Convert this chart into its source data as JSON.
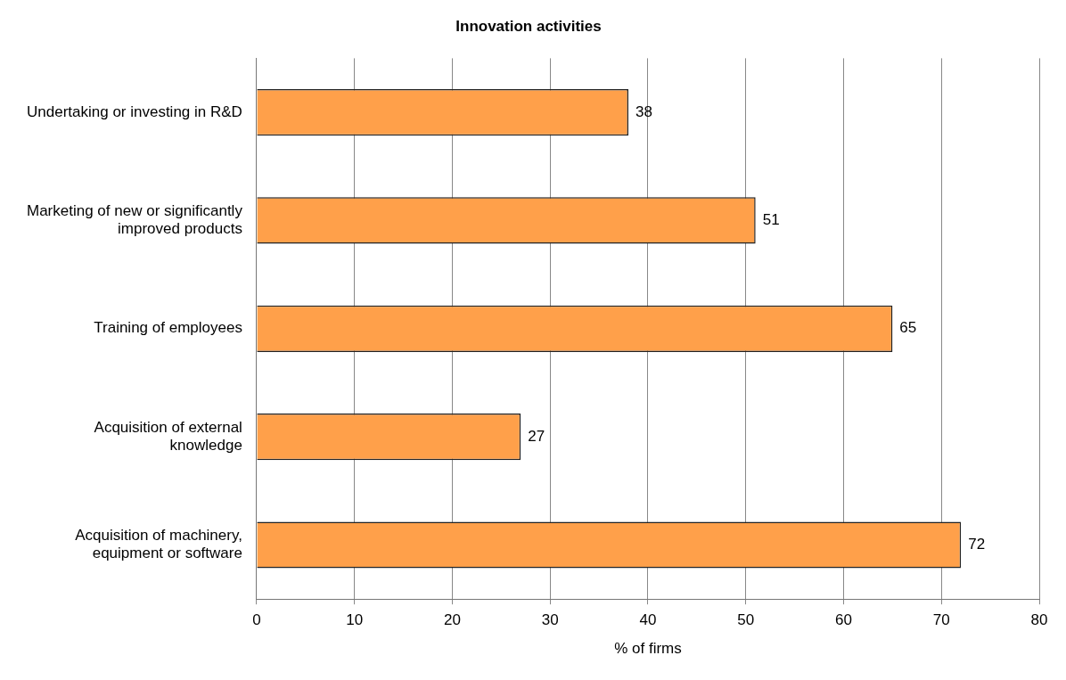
{
  "chart_data": {
    "type": "bar",
    "orientation": "horizontal",
    "title": "Innovation activities",
    "xlabel": "% of firms",
    "categories": [
      "Undertaking or investing in R&D",
      "Marketing of new or significantly improved products",
      "Training of employees",
      "Acquisition of external knowledge",
      "Acquisition of machinery, equipment or software"
    ],
    "values": [
      38,
      51,
      65,
      27,
      72
    ],
    "color": "#ffa04a",
    "xlim": [
      0,
      80
    ],
    "xticks": [
      0,
      10,
      20,
      30,
      40,
      50,
      60,
      70,
      80
    ],
    "grid": "x",
    "data_labels": true,
    "legend": false
  }
}
